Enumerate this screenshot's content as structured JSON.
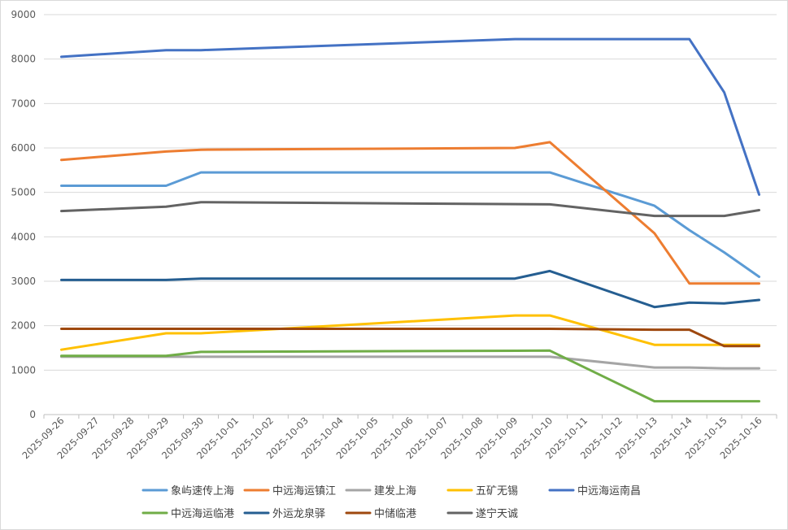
{
  "chart_data": {
    "type": "line",
    "title": "",
    "xlabel": "",
    "ylabel": "",
    "ylim": [
      0,
      9000
    ],
    "yticks": [
      0,
      1000,
      2000,
      3000,
      4000,
      5000,
      6000,
      7000,
      8000,
      9000
    ],
    "grid": true,
    "legend_position": "bottom",
    "categories": [
      "2025-09-26",
      "2025-09-27",
      "2025-09-28",
      "2025-09-29",
      "2025-09-30",
      "2025-10-01",
      "2025-10-02",
      "2025-10-03",
      "2025-10-04",
      "2025-10-05",
      "2025-10-06",
      "2025-10-07",
      "2025-10-08",
      "2025-10-09",
      "2025-10-10",
      "2025-10-11",
      "2025-10-12",
      "2025-10-13",
      "2025-10-14",
      "2025-10-15",
      "2025-10-16"
    ],
    "series": [
      {
        "name": "象屿速传上海",
        "color": "#5B9BD5",
        "values": [
          5150,
          null,
          null,
          5150,
          5450,
          null,
          null,
          null,
          null,
          null,
          null,
          null,
          null,
          null,
          5450,
          null,
          null,
          4700,
          4150,
          3650,
          3100
        ]
      },
      {
        "name": "中远海运镇江",
        "color": "#ED7D31",
        "values": [
          5730,
          null,
          null,
          5920,
          5960,
          null,
          null,
          null,
          null,
          null,
          null,
          null,
          null,
          6000,
          6130,
          null,
          null,
          4080,
          2950,
          2950,
          2950
        ]
      },
      {
        "name": "建发上海",
        "color": "#A5A5A5",
        "values": [
          1300,
          null,
          null,
          1300,
          1300,
          null,
          null,
          null,
          null,
          null,
          null,
          null,
          null,
          null,
          1300,
          null,
          null,
          1060,
          1060,
          1040,
          1040
        ]
      },
      {
        "name": "五矿无锡",
        "color": "#FFC000",
        "values": [
          1460,
          null,
          null,
          1830,
          1830,
          null,
          null,
          null,
          null,
          null,
          null,
          null,
          null,
          2230,
          2230,
          null,
          null,
          1570,
          1570,
          1570,
          1570
        ]
      },
      {
        "name": "中远海运南昌",
        "color": "#4472C4",
        "values": [
          8050,
          null,
          null,
          8200,
          8200,
          null,
          null,
          null,
          null,
          null,
          null,
          null,
          null,
          8450,
          8450,
          null,
          null,
          8450,
          8450,
          7250,
          4950
        ]
      },
      {
        "name": "中远海运临港",
        "color": "#70AD47",
        "values": [
          1320,
          null,
          null,
          1320,
          1410,
          null,
          null,
          null,
          null,
          null,
          null,
          null,
          null,
          null,
          1440,
          null,
          null,
          300,
          300,
          300,
          300
        ]
      },
      {
        "name": "外运龙泉驿",
        "color": "#255E91",
        "values": [
          3030,
          null,
          null,
          3030,
          3060,
          null,
          null,
          null,
          null,
          null,
          null,
          null,
          null,
          3060,
          3230,
          null,
          null,
          2420,
          2520,
          2500,
          2580
        ]
      },
      {
        "name": "中储临港",
        "color": "#9E480E",
        "values": [
          1930,
          null,
          null,
          1930,
          1930,
          null,
          null,
          null,
          null,
          null,
          null,
          null,
          null,
          null,
          1930,
          null,
          null,
          1910,
          1910,
          1540,
          1540
        ]
      },
      {
        "name": "遂宁天诚",
        "color": "#636363",
        "values": [
          4580,
          null,
          null,
          4680,
          4780,
          null,
          null,
          null,
          null,
          null,
          null,
          null,
          null,
          null,
          4730,
          null,
          null,
          4470,
          4470,
          4470,
          4600
        ]
      }
    ]
  }
}
